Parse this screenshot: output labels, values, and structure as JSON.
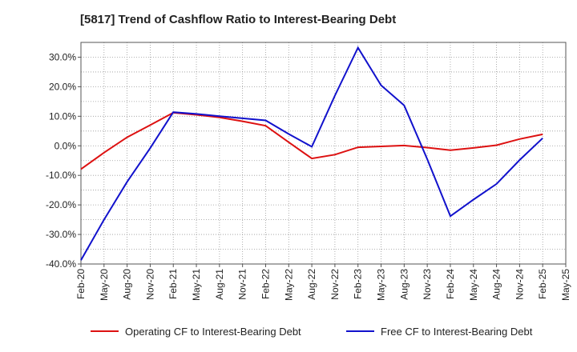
{
  "title": "[5817]  Trend of Cashflow Ratio to Interest-Bearing Debt",
  "colors": {
    "operating": "#dd1111",
    "free": "#1111cc",
    "grid": "#999999"
  },
  "chart_data": {
    "type": "line",
    "title": "[5817]  Trend of Cashflow Ratio to Interest-Bearing Debt",
    "xlabel": "",
    "ylabel": "",
    "x": [
      "Feb-20",
      "May-20",
      "Aug-20",
      "Nov-20",
      "Feb-21",
      "May-21",
      "Aug-21",
      "Nov-21",
      "Feb-22",
      "May-22",
      "Aug-22",
      "Nov-22",
      "Feb-23",
      "May-23",
      "Aug-23",
      "Nov-23",
      "Feb-24",
      "May-24",
      "Aug-24",
      "Nov-24",
      "Feb-25",
      "May-25"
    ],
    "ylim": [
      -40,
      35
    ],
    "yticks": [
      30,
      20,
      10,
      0,
      -10,
      -20,
      -30,
      -40
    ],
    "ytick_labels": [
      "30.0%",
      "20.0%",
      "10.0%",
      "0.0%",
      "-10.0%",
      "-20.0%",
      "-30.0%",
      "-40.0%"
    ],
    "grid": true,
    "legend_position": "bottom",
    "series": [
      {
        "name": "Operating CF to Interest-Bearing Debt",
        "color": "#dd1111",
        "values": [
          -7.9,
          -2.3,
          2.9,
          7.0,
          11.2,
          10.5,
          9.6,
          8.3,
          6.8,
          1.2,
          -4.3,
          -3.0,
          -0.5,
          -0.2,
          0.1,
          -0.6,
          -1.5,
          -0.7,
          0.2,
          2.3,
          3.9,
          null
        ]
      },
      {
        "name": "Free CF to Interest-Bearing Debt",
        "color": "#1111cc",
        "values": [
          -38.7,
          -25.0,
          -12.2,
          -0.8,
          11.4,
          10.8,
          10.0,
          9.3,
          8.6,
          4.0,
          -0.3,
          17.0,
          33.2,
          20.5,
          13.7,
          -4.5,
          -23.8,
          -18.2,
          -12.9,
          -4.8,
          2.6,
          null
        ]
      }
    ]
  }
}
